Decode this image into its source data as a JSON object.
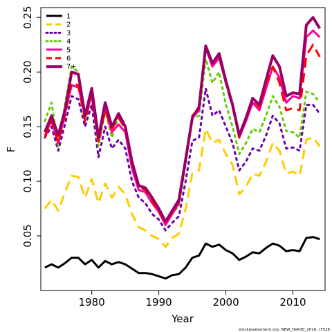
{
  "chart_data": {
    "type": "line",
    "title": "",
    "xlabel": "Year",
    "ylabel": "F",
    "xlim": [
      1972.4,
      2014.8
    ],
    "ylim": [
      0.0,
      0.259
    ],
    "x_ticks": [
      1980,
      1990,
      2000,
      2010
    ],
    "y_ticks": [
      0.05,
      0.1,
      0.15,
      0.2,
      0.25
    ],
    "y_tick_labels": [
      "0.05",
      "0.10",
      "0.15",
      "0.20",
      "0.25"
    ],
    "grid": false,
    "legend_position": "top-left",
    "x": [
      1973,
      1974,
      1975,
      1976,
      1977,
      1978,
      1979,
      1980,
      1981,
      1982,
      1983,
      1984,
      1985,
      1986,
      1987,
      1988,
      1989,
      1990,
      1991,
      1992,
      1993,
      1994,
      1995,
      1996,
      1997,
      1998,
      1999,
      2000,
      2001,
      2002,
      2003,
      2004,
      2005,
      2006,
      2007,
      2008,
      2009,
      2010,
      2011,
      2012,
      2013,
      2014
    ],
    "series": [
      {
        "name": "1",
        "color": "#000000",
        "dash": "solid",
        "width": 3,
        "values": [
          0.021,
          0.024,
          0.021,
          0.025,
          0.03,
          0.03,
          0.024,
          0.028,
          0.021,
          0.027,
          0.024,
          0.026,
          0.024,
          0.02,
          0.016,
          0.016,
          0.015,
          0.013,
          0.011,
          0.014,
          0.015,
          0.021,
          0.03,
          0.032,
          0.043,
          0.04,
          0.042,
          0.037,
          0.034,
          0.028,
          0.031,
          0.035,
          0.034,
          0.039,
          0.043,
          0.041,
          0.036,
          0.037,
          0.036,
          0.048,
          0.049,
          0.047
        ]
      },
      {
        "name": "2",
        "color": "#FFCC00",
        "dash": "dashed",
        "width": 3,
        "values": [
          0.075,
          0.083,
          0.073,
          0.09,
          0.105,
          0.104,
          0.085,
          0.102,
          0.08,
          0.098,
          0.085,
          0.095,
          0.088,
          0.07,
          0.058,
          0.055,
          0.05,
          0.047,
          0.04,
          0.048,
          0.052,
          0.075,
          0.107,
          0.11,
          0.148,
          0.135,
          0.138,
          0.125,
          0.115,
          0.088,
          0.095,
          0.107,
          0.105,
          0.118,
          0.135,
          0.128,
          0.107,
          0.109,
          0.105,
          0.138,
          0.14,
          0.132
        ]
      },
      {
        "name": "3",
        "color": "#6A00A8",
        "dash": "dotted",
        "width": 3,
        "values": [
          0.14,
          0.15,
          0.128,
          0.152,
          0.178,
          0.175,
          0.15,
          0.17,
          0.122,
          0.15,
          0.13,
          0.138,
          0.13,
          0.1,
          0.085,
          0.08,
          0.07,
          0.065,
          0.055,
          0.062,
          0.068,
          0.1,
          0.137,
          0.14,
          0.185,
          0.16,
          0.165,
          0.15,
          0.135,
          0.11,
          0.118,
          0.13,
          0.128,
          0.142,
          0.16,
          0.153,
          0.13,
          0.131,
          0.128,
          0.17,
          0.17,
          0.162
        ]
      },
      {
        "name": "4",
        "color": "#66CC00",
        "dash": "dotted",
        "width": 3,
        "values": [
          0.155,
          0.172,
          0.132,
          0.17,
          0.205,
          0.2,
          0.155,
          0.182,
          0.132,
          0.165,
          0.14,
          0.16,
          0.15,
          0.115,
          0.095,
          0.093,
          0.08,
          0.072,
          0.06,
          0.07,
          0.078,
          0.115,
          0.158,
          0.16,
          0.212,
          0.19,
          0.2,
          0.17,
          0.15,
          0.125,
          0.135,
          0.148,
          0.145,
          0.16,
          0.178,
          0.168,
          0.146,
          0.145,
          0.14,
          0.182,
          0.18,
          0.172
        ]
      },
      {
        "name": "5",
        "color": "#FF0099",
        "dash": "solid",
        "width": 3,
        "values": [
          0.142,
          0.156,
          0.135,
          0.162,
          0.188,
          0.186,
          0.16,
          0.178,
          0.137,
          0.166,
          0.145,
          0.152,
          0.145,
          0.112,
          0.092,
          0.09,
          0.08,
          0.072,
          0.06,
          0.07,
          0.08,
          0.118,
          0.158,
          0.165,
          0.222,
          0.205,
          0.213,
          0.19,
          0.17,
          0.14,
          0.155,
          0.172,
          0.165,
          0.185,
          0.205,
          0.195,
          0.172,
          0.178,
          0.176,
          0.232,
          0.238,
          0.232
        ]
      },
      {
        "name": "6",
        "color": "#FF0000",
        "dash": "dashed",
        "width": 3,
        "values": [
          0.14,
          0.155,
          0.135,
          0.16,
          0.19,
          0.188,
          0.155,
          0.18,
          0.135,
          0.165,
          0.148,
          0.158,
          0.148,
          0.115,
          0.095,
          0.092,
          0.082,
          0.072,
          0.062,
          0.072,
          0.082,
          0.12,
          0.16,
          0.167,
          0.222,
          0.208,
          0.215,
          0.19,
          0.168,
          0.14,
          0.158,
          0.175,
          0.168,
          0.188,
          0.205,
          0.19,
          0.165,
          0.167,
          0.165,
          0.215,
          0.225,
          0.214
        ]
      },
      {
        "name": "7+",
        "color": "#990066",
        "dash": "solid",
        "width": 4,
        "values": [
          0.145,
          0.16,
          0.142,
          0.165,
          0.2,
          0.198,
          0.16,
          0.185,
          0.14,
          0.172,
          0.15,
          0.162,
          0.15,
          0.118,
          0.096,
          0.094,
          0.085,
          0.075,
          0.063,
          0.073,
          0.083,
          0.12,
          0.158,
          0.168,
          0.224,
          0.208,
          0.217,
          0.192,
          0.17,
          0.142,
          0.158,
          0.176,
          0.17,
          0.193,
          0.215,
          0.205,
          0.178,
          0.181,
          0.18,
          0.243,
          0.25,
          0.24
        ]
      }
    ]
  },
  "footnote": "stockassessment.org, NEW_HeR30_2016, r7526"
}
